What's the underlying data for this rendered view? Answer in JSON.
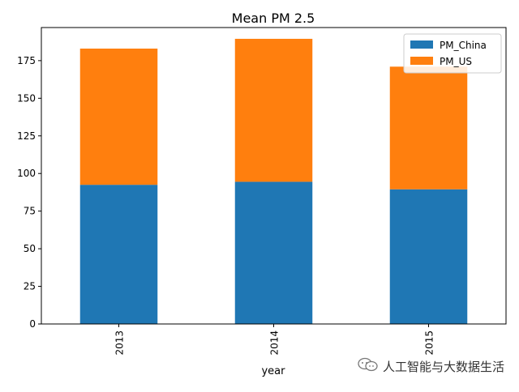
{
  "chart_data": {
    "type": "bar",
    "stacked": true,
    "title": "Mean PM 2.5",
    "xlabel": "year",
    "ylabel": "",
    "categories": [
      "2013",
      "2014",
      "2015"
    ],
    "series": [
      {
        "name": "PM_China",
        "color": "#1f77b4",
        "values": [
          92.5,
          94.5,
          89.5
        ]
      },
      {
        "name": "PM_US",
        "color": "#ff7f0e",
        "values": [
          90.5,
          95.0,
          81.5
        ]
      }
    ],
    "ylim": [
      0,
      197
    ],
    "yticks": [
      0,
      25,
      50,
      75,
      100,
      125,
      150,
      175
    ],
    "legend": "top-right",
    "grid": false
  },
  "watermark": {
    "text": "人工智能与大数据生活",
    "icon": "wechat-icon"
  }
}
